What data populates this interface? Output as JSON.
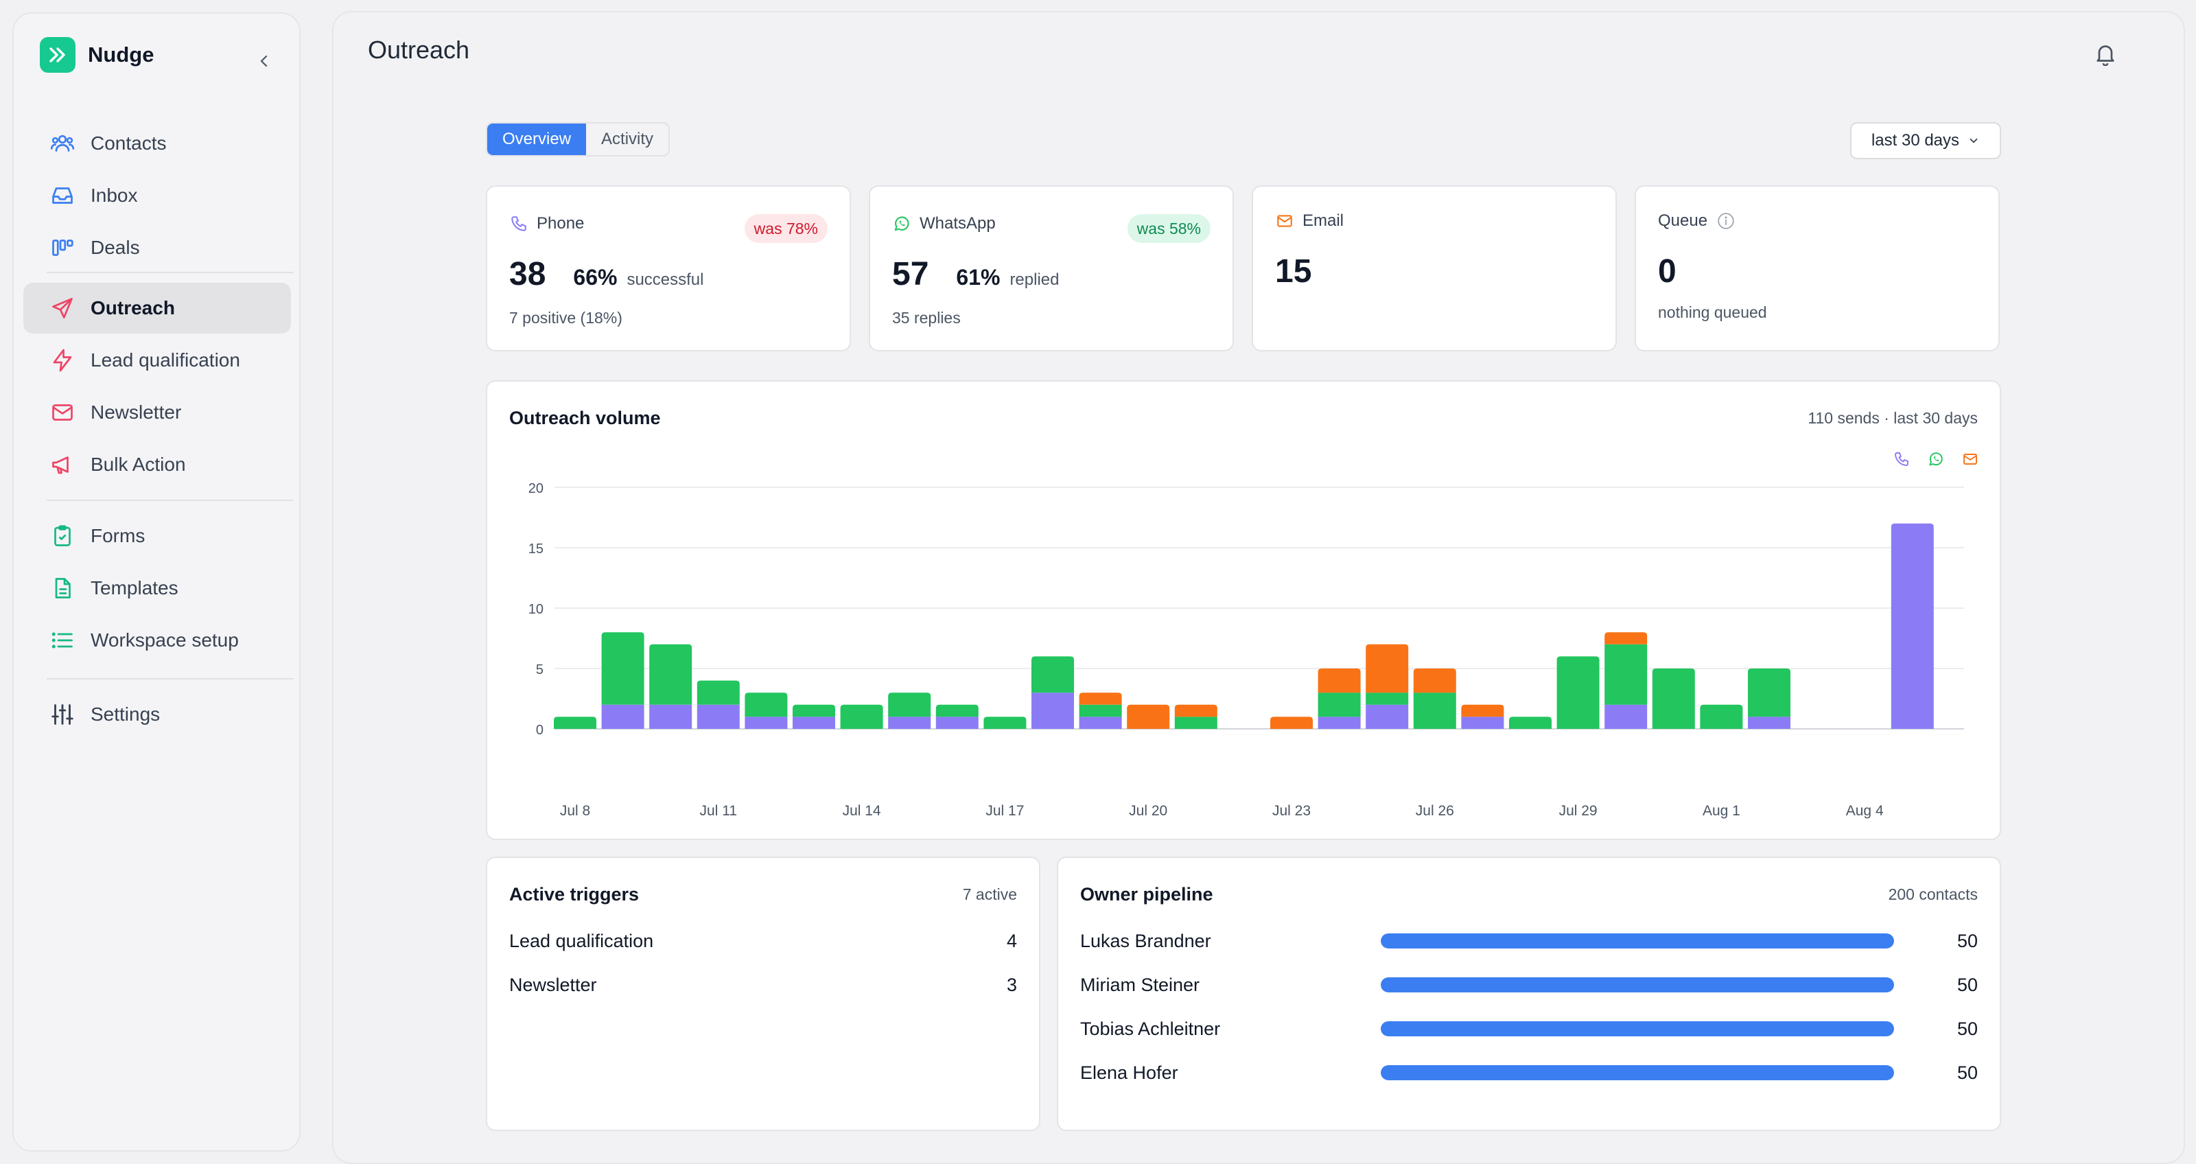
{
  "app": {
    "name": "Nudge"
  },
  "sidebar": {
    "items": [
      {
        "label": "Contacts",
        "icon": "users-icon"
      },
      {
        "label": "Inbox",
        "icon": "inbox-icon"
      },
      {
        "label": "Deals",
        "icon": "kanban-icon"
      },
      {
        "label": "Outreach",
        "icon": "send-icon",
        "active": true
      },
      {
        "label": "Lead qualification",
        "icon": "zap-icon"
      },
      {
        "label": "Newsletter",
        "icon": "mail-icon"
      },
      {
        "label": "Bulk Action",
        "icon": "megaphone-icon"
      },
      {
        "label": "Forms",
        "icon": "clipboard-check-icon"
      },
      {
        "label": "Templates",
        "icon": "file-text-icon"
      },
      {
        "label": "Workspace setup",
        "icon": "list-icon"
      },
      {
        "label": "Settings",
        "icon": "sliders-icon"
      }
    ]
  },
  "page": {
    "title": "Outreach"
  },
  "tabs": [
    {
      "label": "Overview",
      "active": true
    },
    {
      "label": "Activity",
      "active": false
    }
  ],
  "range": {
    "label": "last 30 days"
  },
  "stats": {
    "phone": {
      "label": "Phone",
      "badge": "was 78%",
      "count": "38",
      "pct": "66%",
      "pct_label": "successful",
      "sub": "7 positive (18%)"
    },
    "whatsapp": {
      "label": "WhatsApp",
      "badge": "was 58%",
      "count": "57",
      "pct": "61%",
      "pct_label": "replied",
      "sub": "35 replies"
    },
    "email": {
      "label": "Email",
      "count": "15"
    },
    "queue": {
      "label": "Queue",
      "count": "0",
      "sub": "nothing queued"
    }
  },
  "chart": {
    "title": "Outreach volume",
    "meta": "110 sends · last 30 days"
  },
  "chart_data": {
    "type": "bar",
    "stacked": true,
    "categories": [
      "Jul 8",
      "Jul 9",
      "Jul 10",
      "Jul 11",
      "Jul 12",
      "Jul 13",
      "Jul 14",
      "Jul 15",
      "Jul 16",
      "Jul 17",
      "Jul 18",
      "Jul 19",
      "Jul 20",
      "Jul 21",
      "Jul 22",
      "Jul 23",
      "Jul 24",
      "Jul 25",
      "Jul 26",
      "Jul 27",
      "Jul 28",
      "Jul 29",
      "Jul 30",
      "Jul 31",
      "Aug 1",
      "Aug 2",
      "Aug 3",
      "Aug 4",
      "Aug 5"
    ],
    "tick_labels": [
      "Jul 8",
      "Jul 11",
      "Jul 14",
      "Jul 17",
      "Jul 20",
      "Jul 23",
      "Jul 26",
      "Jul 29",
      "Aug 1",
      "Aug 4"
    ],
    "yticks": [
      0,
      5,
      10,
      15,
      20
    ],
    "ylim": [
      0,
      20
    ],
    "grid": true,
    "series": [
      {
        "icon": "phone-icon",
        "color": "#8b7cf6",
        "values": [
          0,
          2,
          2,
          2,
          1,
          1,
          0,
          1,
          1,
          0,
          3,
          1,
          0,
          0,
          0,
          0,
          1,
          2,
          0,
          1,
          0,
          0,
          2,
          0,
          0,
          1,
          0,
          0,
          17
        ]
      },
      {
        "icon": "whatsapp-icon",
        "color": "#22c55e",
        "values": [
          1,
          6,
          5,
          2,
          2,
          1,
          2,
          2,
          1,
          1,
          3,
          1,
          0,
          1,
          0,
          0,
          2,
          1,
          3,
          0,
          1,
          6,
          5,
          5,
          2,
          4,
          0,
          0,
          0
        ]
      },
      {
        "icon": "email-icon",
        "color": "#f97316",
        "values": [
          0,
          0,
          0,
          0,
          0,
          0,
          0,
          0,
          0,
          0,
          0,
          1,
          2,
          1,
          0,
          1,
          2,
          4,
          2,
          1,
          0,
          0,
          1,
          0,
          0,
          0,
          0,
          0,
          0
        ]
      }
    ]
  },
  "triggers": {
    "title": "Active triggers",
    "meta": "7 active",
    "rows": [
      {
        "label": "Lead qualification",
        "value": "4"
      },
      {
        "label": "Newsletter",
        "value": "3"
      }
    ]
  },
  "pipeline": {
    "title": "Owner pipeline",
    "meta": "200 contacts",
    "rows": [
      {
        "name": "Lukas Brandner",
        "value": "50",
        "fill": 1.0
      },
      {
        "name": "Miriam Steiner",
        "value": "50",
        "fill": 1.0
      },
      {
        "name": "Tobias Achleitner",
        "value": "50",
        "fill": 1.0
      },
      {
        "name": "Elena Hofer",
        "value": "50",
        "fill": 1.0
      }
    ]
  },
  "colors": {
    "accent": "#3b7ef2",
    "brand": "#16c990",
    "phone": "#8b7cf6",
    "whatsapp": "#22c55e",
    "email": "#f97316"
  }
}
